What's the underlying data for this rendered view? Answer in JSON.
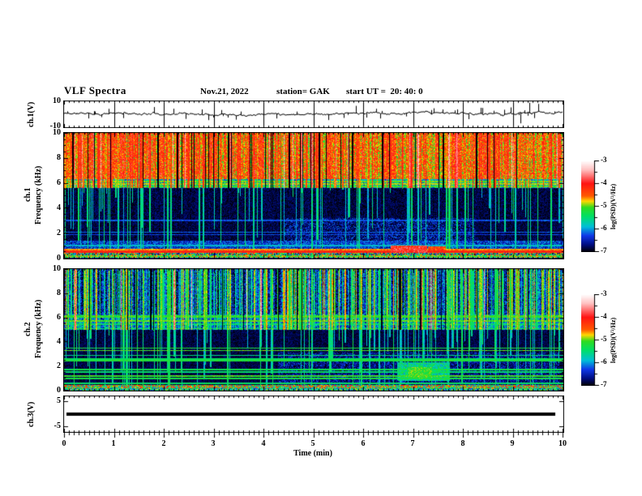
{
  "header": {
    "title": "VLF Spectra",
    "date": "Nov.21, 2022",
    "station": "station= GAK",
    "start_ut": "start UT =  20: 40: 0"
  },
  "xaxis": {
    "label": "Time (min)",
    "ticks": [
      "0",
      "1",
      "2",
      "3",
      "4",
      "5",
      "6",
      "7",
      "8",
      "9",
      "10"
    ]
  },
  "panels": {
    "ch1_wave": {
      "ylabel": "ch.1(V)",
      "ytop": "10",
      "ybottom": "-10"
    },
    "spec1": {
      "ylabel_ch": "ch.1",
      "ylabel_freq": "Frequency (kHz)",
      "yticks": [
        "10",
        "8",
        "6",
        "4",
        "2",
        "0"
      ]
    },
    "spec2": {
      "ylabel_ch": "ch.2",
      "ylabel_freq": "Frequency (kHz)",
      "yticks": [
        "10",
        "8",
        "6",
        "4",
        "2",
        "0"
      ]
    },
    "ch3_wave": {
      "ylabel": "ch.3(V)",
      "ytop": "5",
      "ybottom": "-5"
    }
  },
  "colorbars": [
    {
      "label": "log(PSD)(V²/Hz)",
      "ticks": [
        "-3",
        "-4",
        "-5",
        "-6",
        "-7"
      ]
    },
    {
      "label": "log(PSD)(V²/Hz)",
      "ticks": [
        "-3",
        "-4",
        "-5",
        "-6",
        "-7"
      ]
    }
  ],
  "colormap": [
    {
      "v": -3.0,
      "c": "#ffffff"
    },
    {
      "v": -3.4,
      "c": "#ffc0c0"
    },
    {
      "v": -4.0,
      "c": "#ff1414"
    },
    {
      "v": -4.55,
      "c": "#ff5a00"
    },
    {
      "v": -4.78,
      "c": "#ffd800"
    },
    {
      "v": -5.05,
      "c": "#30dc20"
    },
    {
      "v": -5.45,
      "c": "#00e068"
    },
    {
      "v": -5.9,
      "c": "#00c0d8"
    },
    {
      "v": -6.3,
      "c": "#1038e8"
    },
    {
      "v": -6.7,
      "c": "#000d80"
    },
    {
      "v": -7.0,
      "c": "#000006"
    }
  ],
  "chart_data": [
    {
      "id": "ch1_waveform",
      "type": "line",
      "title": "ch.1 voltage vs time",
      "xlabel": "Time (min)",
      "ylabel": "ch.1(V)",
      "xlim": [
        0,
        10
      ],
      "ylim": [
        -10,
        10
      ],
      "grid": "vertical-minute-lines",
      "description": "Noisy broadband voltage trace riding near +0.5 V with impulsive spikes",
      "signal": {
        "mean": 0.6,
        "walk_step": 1.1,
        "damp": 0.9,
        "jitter": 0.8,
        "seed": 11,
        "spike_count": 42,
        "spike_mag": [
          1.5,
          4.5
        ],
        "big_spikes": [
          {
            "t": 0.9,
            "v": 4.2
          },
          {
            "t": 2.9,
            "v": -4.5
          },
          {
            "t": 5.85,
            "v": 6.5
          },
          {
            "t": 7.42,
            "v": 4.6
          },
          {
            "t": 8.35,
            "v": 5.0
          },
          {
            "t": 9.15,
            "v": -7.0
          },
          {
            "t": 9.33,
            "v": 9.0
          },
          {
            "t": 9.52,
            "v": 8.0
          }
        ]
      }
    },
    {
      "id": "ch1_spectrogram",
      "type": "heatmap",
      "xlabel": "Time (min)",
      "ylabel": "ch.1 Frequency (kHz)",
      "xlim": [
        0,
        10
      ],
      "ylim": [
        0,
        10
      ],
      "clim": [
        -7,
        -3
      ],
      "colorbar_label": "log(PSD)(V²/Hz)",
      "seed": 7,
      "bands": [
        {
          "f": [
            6.3,
            10.0
          ],
          "level": -4.55,
          "noise": 0.5,
          "colstripe": 0.45
        },
        {
          "f": [
            5.6,
            6.3
          ],
          "level": -5.8,
          "noise": 0.55,
          "colstripe": 0.3
        },
        {
          "f": [
            1.4,
            5.6
          ],
          "level": -6.85,
          "noise": 0.18,
          "colstripe": 0.05
        },
        {
          "f": [
            0.8,
            1.4
          ],
          "level": -6.35,
          "noise": 0.45,
          "colstripe": 0.1
        },
        {
          "f": [
            0.62,
            0.8
          ],
          "level": -4.65,
          "noise": 0.22,
          "colstripe": 0.05
        },
        {
          "f": [
            0.44,
            0.62
          ],
          "level": -4.15,
          "noise": 0.18,
          "colstripe": 0.05
        },
        {
          "f": [
            0.28,
            0.44
          ],
          "level": -5.6,
          "noise": 1.5,
          "colstripe": 0.05
        },
        {
          "f": [
            0.04,
            0.28
          ],
          "level": -5.05,
          "noise": 0.6,
          "colstripe": 0.1
        },
        {
          "f": [
            0.0,
            0.04
          ],
          "level": -6.6,
          "noise": 0.2,
          "colstripe": 0.0
        }
      ],
      "hlines": [
        {
          "f": 6.15,
          "w": 0.07,
          "level": -5.0
        },
        {
          "f": 5.95,
          "w": 0.07,
          "level": -4.9
        },
        {
          "f": 5.72,
          "w": 0.07,
          "level": -5.1
        },
        {
          "f": 3.05,
          "w": 0.06,
          "level": -6.25
        },
        {
          "f": 2.1,
          "w": 0.06,
          "level": -6.2
        },
        {
          "f": 1.9,
          "w": 0.06,
          "level": -6.3
        },
        {
          "f": 1.05,
          "w": 0.06,
          "level": -5.9
        }
      ],
      "streaks": {
        "count": 210,
        "fmin": 5.6,
        "top_level": [
          -4.9,
          -4.0
        ],
        "red_fraction": 0.12,
        "down_fraction": 0.55,
        "dropout_count": 45
      },
      "blobs": [
        {
          "t": [
            6.55,
            7.25
          ],
          "f": [
            0.45,
            1.05
          ],
          "level": -4.0,
          "noise": 0.45
        },
        {
          "t": [
            7.3,
            7.62
          ],
          "f": [
            0.5,
            0.95
          ],
          "level": -4.3,
          "noise": 0.4
        },
        {
          "t": [
            4.4,
            8.2
          ],
          "f": [
            0.9,
            3.2
          ],
          "level": -6.45,
          "noise": 0.4,
          "sparse": 0.5
        }
      ]
    },
    {
      "id": "ch2_spectrogram",
      "type": "heatmap",
      "xlabel": "Time (min)",
      "ylabel": "ch.2 Frequency (kHz)",
      "xlim": [
        0,
        10
      ],
      "ylim": [
        0,
        10
      ],
      "clim": [
        -7,
        -3
      ],
      "colorbar_label": "log(PSD)(V²/Hz)",
      "seed": 19,
      "bands": [
        {
          "f": [
            6.3,
            10.0
          ],
          "level": -6.35,
          "noise": 0.5,
          "colstripe": 0.55
        },
        {
          "f": [
            5.0,
            6.3
          ],
          "level": -6.1,
          "noise": 0.5,
          "colstripe": 0.35
        },
        {
          "f": [
            0.45,
            5.0
          ],
          "level": -6.85,
          "noise": 0.15,
          "colstripe": 0.05
        },
        {
          "f": [
            0.2,
            0.45
          ],
          "level": -5.0,
          "noise": 1.1,
          "colstripe": 0.1
        },
        {
          "f": [
            0.0,
            0.2
          ],
          "level": -5.6,
          "noise": 0.9,
          "colstripe": 0.1
        }
      ],
      "hlines": [
        {
          "f": 6.1,
          "w": 0.07,
          "level": -5.15
        },
        {
          "f": 5.75,
          "w": 0.07,
          "level": -5.05
        },
        {
          "f": 5.45,
          "w": 0.06,
          "level": -5.5
        },
        {
          "f": 5.1,
          "w": 0.06,
          "level": -5.3
        },
        {
          "f": 3.5,
          "w": 0.06,
          "level": -5.2
        },
        {
          "f": 3.3,
          "w": 0.06,
          "level": -5.05
        },
        {
          "f": 2.9,
          "w": 0.06,
          "level": -5.5
        },
        {
          "f": 2.6,
          "w": 0.06,
          "level": -5.35
        },
        {
          "f": 2.45,
          "w": 0.06,
          "level": -5.2
        },
        {
          "f": 1.75,
          "w": 0.06,
          "level": -5.3
        },
        {
          "f": 1.55,
          "w": 0.06,
          "level": -5.45
        },
        {
          "f": 1.2,
          "w": 0.06,
          "level": -5.1
        },
        {
          "f": 1.0,
          "w": 0.06,
          "level": -5.25
        },
        {
          "f": 0.6,
          "w": 0.05,
          "level": -5.4
        }
      ],
      "streaks": {
        "count": 300,
        "fmin": 5.0,
        "top_level": [
          -5.6,
          -4.7
        ],
        "red_fraction": 0.05,
        "down_fraction": 0.5,
        "dropout_count": 20
      },
      "blobs": [
        {
          "t": [
            6.7,
            7.7
          ],
          "f": [
            0.8,
            2.3
          ],
          "level": -5.6,
          "noise": 0.5
        },
        {
          "t": [
            6.9,
            7.35
          ],
          "f": [
            1.0,
            1.9
          ],
          "level": -5.15,
          "noise": 0.35
        },
        {
          "t": [
            4.3,
            9.9
          ],
          "f": [
            0.5,
            3.1
          ],
          "level": -6.5,
          "noise": 0.35,
          "sparse": 0.55
        }
      ]
    },
    {
      "id": "ch3_waveform",
      "type": "line",
      "xlabel": "Time (min)",
      "ylabel": "ch.3(V)",
      "xlim": [
        0,
        10
      ],
      "ylim": [
        -5,
        5
      ],
      "description": "Flat trace at 0 V (channel off)",
      "signal": {
        "constant": 0,
        "t_range": [
          0.05,
          9.85
        ],
        "thickness_px": 4
      }
    }
  ]
}
